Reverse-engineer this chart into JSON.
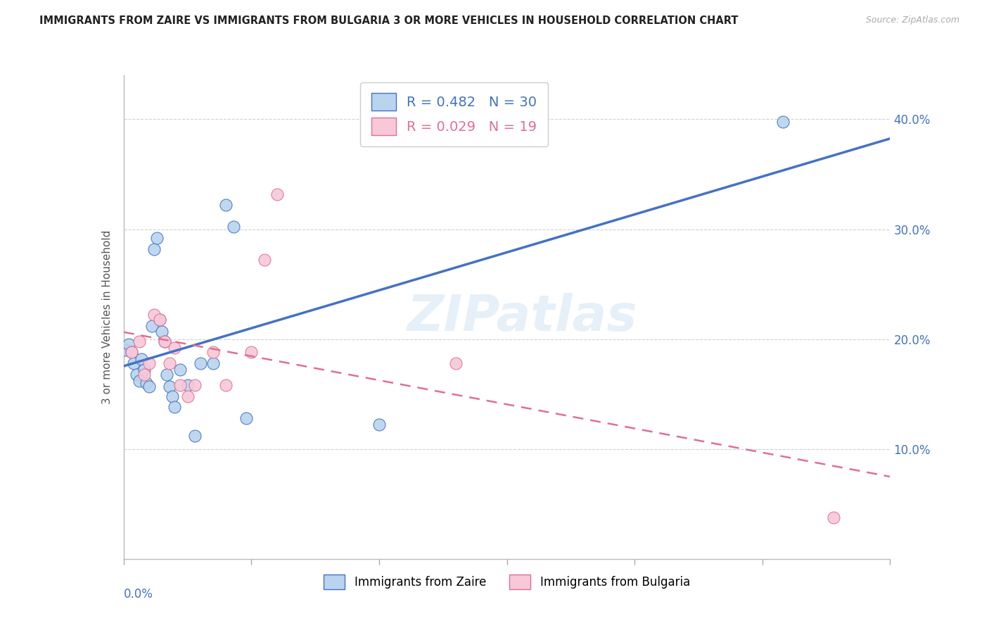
{
  "title": "IMMIGRANTS FROM ZAIRE VS IMMIGRANTS FROM BULGARIA 3 OR MORE VEHICLES IN HOUSEHOLD CORRELATION CHART",
  "source": "Source: ZipAtlas.com",
  "ylabel": "3 or more Vehicles in Household",
  "watermark": "ZIPatlas",
  "zaire_R": 0.482,
  "zaire_N": 30,
  "bulgaria_R": 0.029,
  "bulgaria_N": 19,
  "zaire_color": "#b8d4ee",
  "bulgaria_color": "#f8c8d8",
  "zaire_line_color": "#4472c4",
  "bulgaria_line_color": "#e07090",
  "background_color": "#ffffff",
  "grid_color": "#d0d0d0",
  "xlim": [
    0.0,
    0.3
  ],
  "ylim": [
    0.0,
    0.44
  ],
  "yticks": [
    0.1,
    0.2,
    0.3,
    0.4
  ],
  "xticks": [
    0.0,
    0.05,
    0.1,
    0.15,
    0.2,
    0.25,
    0.3
  ],
  "zaire_x": [
    0.001,
    0.002,
    0.003,
    0.004,
    0.005,
    0.006,
    0.007,
    0.008,
    0.009,
    0.01,
    0.011,
    0.012,
    0.013,
    0.014,
    0.015,
    0.016,
    0.017,
    0.018,
    0.019,
    0.02,
    0.022,
    0.025,
    0.028,
    0.03,
    0.035,
    0.04,
    0.043,
    0.048,
    0.1,
    0.258
  ],
  "zaire_y": [
    0.19,
    0.195,
    0.188,
    0.178,
    0.168,
    0.162,
    0.182,
    0.172,
    0.16,
    0.157,
    0.212,
    0.282,
    0.292,
    0.218,
    0.207,
    0.198,
    0.168,
    0.157,
    0.148,
    0.138,
    0.172,
    0.158,
    0.112,
    0.178,
    0.178,
    0.322,
    0.302,
    0.128,
    0.122,
    0.398
  ],
  "bulgaria_x": [
    0.003,
    0.006,
    0.008,
    0.01,
    0.012,
    0.014,
    0.016,
    0.018,
    0.02,
    0.022,
    0.025,
    0.028,
    0.035,
    0.04,
    0.05,
    0.055,
    0.06,
    0.13,
    0.278
  ],
  "bulgaria_y": [
    0.188,
    0.198,
    0.168,
    0.178,
    0.222,
    0.218,
    0.198,
    0.178,
    0.192,
    0.158,
    0.148,
    0.158,
    0.188,
    0.158,
    0.188,
    0.272,
    0.332,
    0.178,
    0.038
  ]
}
